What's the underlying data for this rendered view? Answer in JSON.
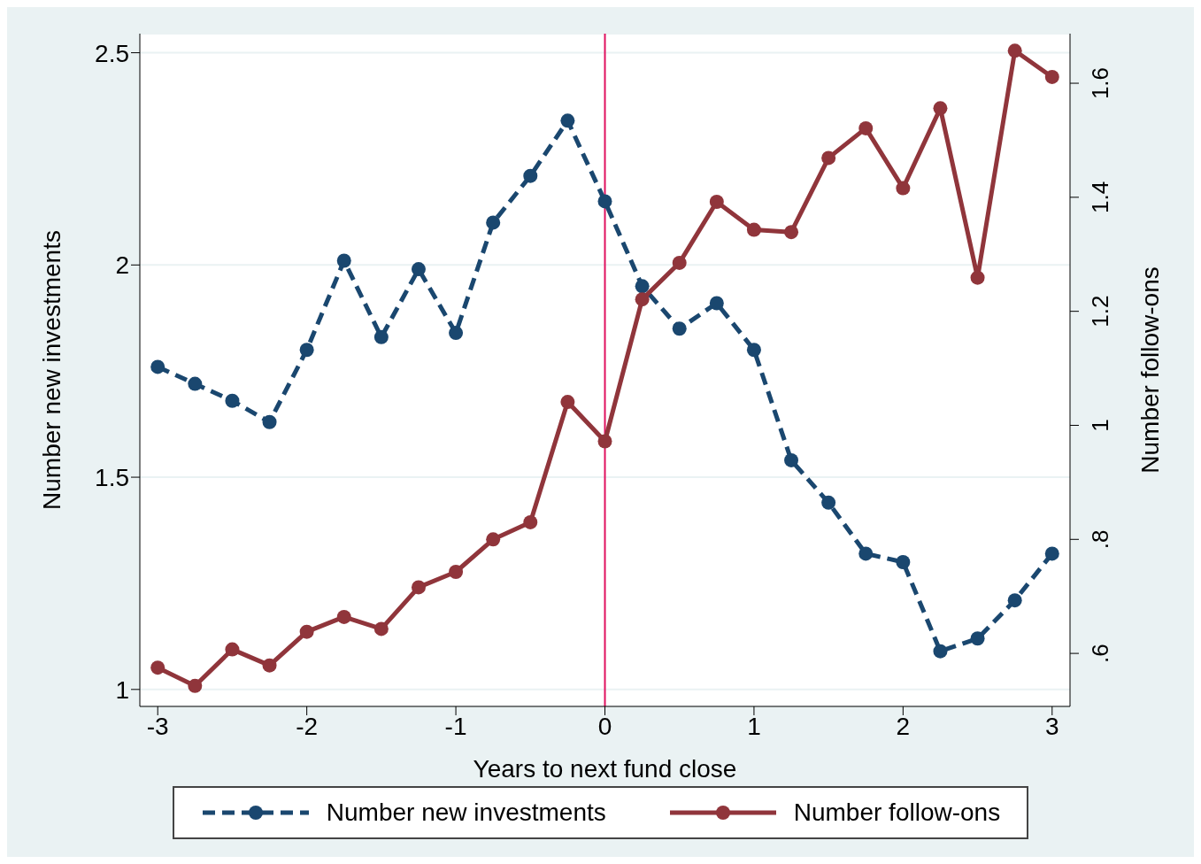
{
  "chart_data": {
    "type": "line",
    "xlabel": "Years to next fund close",
    "ylabel": "Number new investments",
    "y2label": "Number follow-ons",
    "x": [
      -3,
      -2.75,
      -2.5,
      -2.25,
      -2,
      -1.75,
      -1.5,
      -1.25,
      -1,
      -0.75,
      -0.5,
      -0.25,
      0,
      0.25,
      0.5,
      0.75,
      1,
      1.25,
      1.5,
      1.75,
      2,
      2.25,
      2.5,
      2.75,
      3
    ],
    "series": [
      {
        "name": "Number new investments",
        "color": "#1a476f",
        "line_style": "dashed",
        "values": [
          1.76,
          1.72,
          1.68,
          1.63,
          1.8,
          2.01,
          1.83,
          1.99,
          1.84,
          2.1,
          2.21,
          2.34,
          2.15,
          1.95,
          1.85,
          1.91,
          1.8,
          1.54,
          1.44,
          1.32,
          1.3,
          1.09,
          1.12,
          1.21,
          1.32
        ]
      },
      {
        "name": "Number follow-ons",
        "color": "#90353b",
        "line_style": "solid",
        "axis": "y2",
        "values": [
          0.575,
          0.543,
          0.607,
          0.579,
          0.638,
          0.664,
          0.643,
          0.716,
          0.743,
          0.8,
          0.83,
          1.041,
          0.972,
          1.221,
          1.285,
          1.392,
          1.343,
          1.339,
          1.469,
          1.521,
          1.416,
          1.556,
          1.259,
          1.657,
          1.611
        ]
      }
    ],
    "xlim": [
      -3.12,
      3.12
    ],
    "xticks": [
      -3,
      -2,
      -1,
      0,
      1,
      2,
      3
    ],
    "ylim": [
      0.96,
      2.545
    ],
    "yticks": [
      1,
      1.5,
      2,
      2.5
    ],
    "y2lim": [
      0.507,
      1.687
    ],
    "y2ticks": [
      {
        "value": 0.6,
        "label": ".6"
      },
      {
        "value": 0.8,
        "label": ".8"
      },
      1,
      1.2,
      1.4,
      1.6
    ],
    "ref_lines": [
      {
        "axis": "x",
        "value": 0,
        "color": "#e0115f"
      }
    ],
    "grid": "y",
    "legend": "bottom",
    "marker": "circle"
  }
}
